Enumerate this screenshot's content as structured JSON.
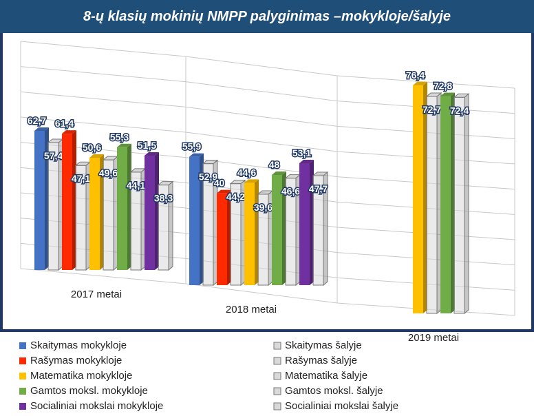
{
  "chart_data": {
    "type": "bar3d",
    "title": "8-ų klasių mokinių NMPP palyginimas –mokykloje/šalyje",
    "categories": [
      "2017 metai",
      "2018 metai",
      "2019 metai"
    ],
    "ylim": [
      0,
      90
    ],
    "series": [
      {
        "name": "Skaitymas mokykloje",
        "color": "#4472c4",
        "values": [
          62.7,
          55.9,
          null
        ],
        "value_labels": [
          "62,7",
          "55,9",
          null
        ]
      },
      {
        "name": "Skaitymas šalyje",
        "color": "#d9d9d9",
        "values": [
          57.4,
          52.9,
          null
        ],
        "value_labels": [
          "57,4",
          "52,9",
          null
        ]
      },
      {
        "name": "Rašymas mokykloje",
        "color": "#ff2a00",
        "values": [
          61.4,
          40,
          null
        ],
        "value_labels": [
          "61,4",
          "40",
          null
        ]
      },
      {
        "name": "Rašymas šalyje",
        "color": "#d9d9d9",
        "values": [
          47.1,
          44.2,
          null
        ],
        "value_labels": [
          "47,1",
          "44,2",
          null
        ]
      },
      {
        "name": "Matematika mokykloje",
        "color": "#ffc000",
        "values": [
          50.6,
          44.6,
          76.4
        ],
        "value_labels": [
          "50,6",
          "44,6",
          "76,4"
        ]
      },
      {
        "name": "Matematika šalyje",
        "color": "#d9d9d9",
        "values": [
          49.6,
          39.6,
          72.7
        ],
        "value_labels": [
          "49,6",
          "39,6",
          "72,7"
        ]
      },
      {
        "name": "Gamtos moksl. mokykloje",
        "color": "#70ad47",
        "values": [
          55.3,
          48,
          72.8
        ],
        "value_labels": [
          "55,3",
          "48",
          "72,8"
        ]
      },
      {
        "name": "Gamtos moksl. šalyje",
        "color": "#d9d9d9",
        "values": [
          44.1,
          46.6,
          72.4
        ],
        "value_labels": [
          "44,1",
          "46,6",
          "72,4"
        ]
      },
      {
        "name": "Socialiniai mokslai mokykloje",
        "color": "#7030a0",
        "values": [
          51.5,
          53.1,
          null
        ],
        "value_labels": [
          "51,5",
          "53,1",
          null
        ]
      },
      {
        "name": "Socialiniai mokslai šalyje",
        "color": "#d9d9d9",
        "values": [
          38.3,
          47.7,
          null
        ],
        "value_labels": [
          "38,3",
          "47,7",
          null
        ]
      }
    ]
  }
}
